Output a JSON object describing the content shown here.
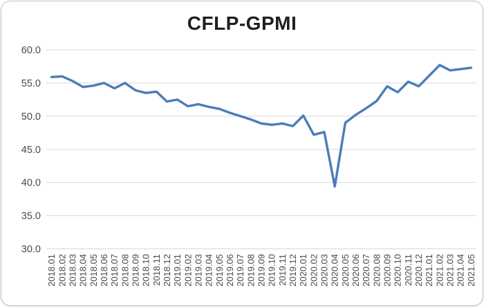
{
  "chart_data": {
    "type": "line",
    "title": "CFLP-GPMI",
    "series_name": "CFLP-GPMI",
    "x": [
      "2018.01",
      "2018.02",
      "2018.03",
      "2018.04",
      "2018.05",
      "2018.06",
      "2018.07",
      "2018.08",
      "2018.09",
      "2018.10",
      "2018.11",
      "2018.12",
      "2019.01",
      "2019.02",
      "2019.03",
      "2019.04",
      "2019.05",
      "2019.06",
      "2019.07",
      "2019.08",
      "2019.09",
      "2019.10",
      "2019.11",
      "2019.12",
      "2020.01",
      "2020.02",
      "2020.03",
      "2020.04",
      "2020.05",
      "2020.06",
      "2020.07",
      "2020.08",
      "2020.09",
      "2020.10",
      "2020.11",
      "2020.12",
      "2021.01",
      "2021.02",
      "2021.03",
      "2021.04",
      "2021.05"
    ],
    "values": [
      55.9,
      56.0,
      55.3,
      54.4,
      54.6,
      55.0,
      54.2,
      55.0,
      53.9,
      53.5,
      53.7,
      52.2,
      52.5,
      51.5,
      51.8,
      51.4,
      51.1,
      50.5,
      50.0,
      49.5,
      48.9,
      48.7,
      48.9,
      48.5,
      50.1,
      47.2,
      47.6,
      39.4,
      49.0,
      50.2,
      51.2,
      52.3,
      54.5,
      53.6,
      55.2,
      54.5,
      56.1,
      57.7,
      56.9,
      57.1,
      57.3
    ],
    "ylim": [
      30.0,
      60.0
    ],
    "ytick_step": 5.0,
    "ytick_labels": [
      "60.0",
      "55.0",
      "50.0",
      "45.0",
      "40.0",
      "35.0",
      "30.0"
    ],
    "grid": "horizontal",
    "legend_position": "none",
    "line_color": "#4a7cba",
    "gridline_color": "#d8d8d8",
    "axis_label_color": "#4a4a4a",
    "title_color": "#1f1f1f"
  }
}
